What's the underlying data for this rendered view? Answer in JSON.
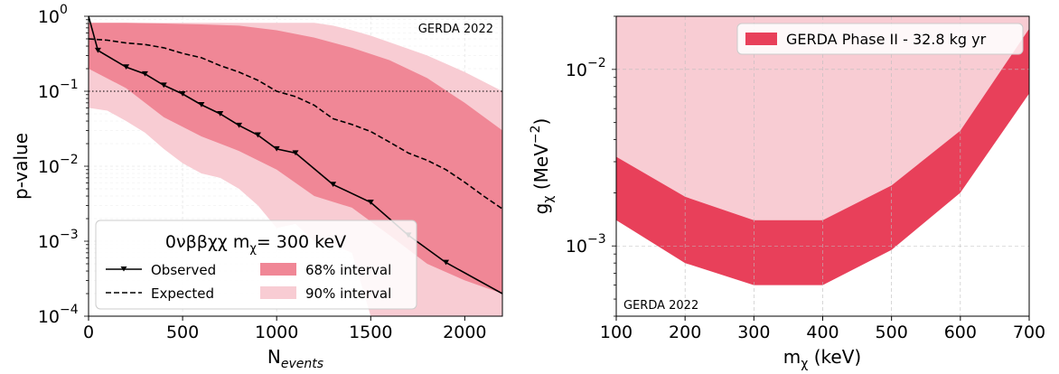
{
  "chart_data": [
    {
      "type": "line",
      "panel": "left",
      "xlabel": "N",
      "xlabel_sub": "events",
      "ylabel": "p-value",
      "xlim": [
        0,
        2200
      ],
      "ylim": [
        0.0001,
        1
      ],
      "yscale": "log",
      "xticks": [
        0,
        500,
        1000,
        1500,
        2000
      ],
      "yticks": [
        {
          "value": 1,
          "base": "10",
          "exp": "0"
        },
        {
          "value": 0.1,
          "base": "10",
          "exp": "−1"
        },
        {
          "value": 0.01,
          "base": "10",
          "exp": "−2"
        },
        {
          "value": 0.001,
          "base": "10",
          "exp": "−3"
        },
        {
          "value": 0.0001,
          "base": "10",
          "exp": "−4"
        }
      ],
      "annotation": "GERDA 2022",
      "reference_line": {
        "y": 0.1,
        "style": "dotted"
      },
      "legend": {
        "title_prefix": "0νββχχ m",
        "title_sub": "χ",
        "title_suffix": "= 300 keV",
        "entries": [
          "Observed",
          "Expected",
          "68% interval",
          "90% interval"
        ],
        "placement": "lower-left"
      },
      "colors": {
        "band68": "#f08796",
        "band90": "#f8ccd3",
        "line": "#000000"
      },
      "series": [
        {
          "name": "Observed",
          "style": "solid-triangle-marker",
          "x": [
            0,
            50,
            200,
            300,
            400,
            500,
            600,
            700,
            800,
            900,
            1000,
            1100,
            1300,
            1500,
            1700,
            1900,
            2200
          ],
          "y": [
            1.0,
            0.35,
            0.21,
            0.17,
            0.12,
            0.092,
            0.066,
            0.05,
            0.035,
            0.026,
            0.017,
            0.015,
            0.0057,
            0.0033,
            0.0012,
            0.00052,
            0.0002
          ]
        },
        {
          "name": "Expected",
          "style": "dashed",
          "x": [
            0,
            100,
            200,
            300,
            400,
            500,
            600,
            700,
            800,
            900,
            1000,
            1100,
            1200,
            1300,
            1400,
            1500,
            1600,
            1700,
            1800,
            1900,
            2000,
            2100,
            2200
          ],
          "y": [
            0.5,
            0.48,
            0.44,
            0.42,
            0.38,
            0.32,
            0.28,
            0.22,
            0.18,
            0.14,
            0.1,
            0.085,
            0.065,
            0.043,
            0.036,
            0.029,
            0.021,
            0.015,
            0.012,
            0.009,
            0.0061,
            0.004,
            0.0027
          ]
        },
        {
          "name": "68% interval",
          "style": "band",
          "x": [
            0,
            200,
            400,
            600,
            800,
            1000,
            1200,
            1400,
            1600,
            1800,
            2000,
            2200
          ],
          "lower": [
            0.2,
            0.11,
            0.045,
            0.025,
            0.016,
            0.009,
            0.004,
            0.0028,
            0.0012,
            0.0005,
            0.0003,
            0.0002
          ],
          "upper": [
            0.82,
            0.82,
            0.8,
            0.78,
            0.75,
            0.65,
            0.52,
            0.38,
            0.26,
            0.15,
            0.07,
            0.03
          ]
        },
        {
          "name": "90% interval",
          "style": "band",
          "x": [
            0,
            100,
            200,
            300,
            400,
            500,
            600,
            700,
            800,
            900,
            1000,
            1100,
            1200,
            1300,
            1400,
            1500,
            1600,
            1800,
            2000,
            2200
          ],
          "lower": [
            0.06,
            0.055,
            0.04,
            0.028,
            0.017,
            0.011,
            0.008,
            0.007,
            0.005,
            0.003,
            0.0015,
            0.0017,
            0.001,
            0.0009,
            0.0007,
            0.0001,
            0.0001,
            0.0001,
            0.0001,
            0.0001
          ],
          "upper": [
            0.82,
            0.82,
            0.82,
            0.82,
            0.82,
            0.82,
            0.82,
            0.82,
            0.82,
            0.82,
            0.82,
            0.82,
            0.82,
            0.75,
            0.65,
            0.55,
            0.45,
            0.3,
            0.18,
            0.1
          ]
        }
      ]
    },
    {
      "type": "area",
      "panel": "right",
      "xlabel_prefix": "m",
      "xlabel_sub": "χ",
      "xlabel_suffix": " (keV)",
      "ylabel_prefix": "g",
      "ylabel_sub": "χ",
      "ylabel_suffix": " (MeV",
      "ylabel_sup": "−2",
      "ylabel_close": ")",
      "xlim": [
        100,
        700
      ],
      "ylim": [
        0.0004,
        0.02
      ],
      "yscale": "log",
      "xticks": [
        100,
        200,
        300,
        400,
        500,
        600,
        700
      ],
      "yticks": [
        {
          "value": 0.01,
          "base": "10",
          "exp": "−2"
        },
        {
          "value": 0.001,
          "base": "10",
          "exp": "−3"
        }
      ],
      "grid": true,
      "annotation": "GERDA 2022",
      "legend": {
        "entries": [
          "GERDA Phase II - 32.8 kg yr"
        ],
        "placement": "top-right"
      },
      "colors": {
        "band": "#e8405a",
        "excluded": "#f8ccd3"
      },
      "series": [
        {
          "name": "GERDA Phase II - 32.8 kg yr",
          "x": [
            100,
            200,
            300,
            400,
            500,
            600,
            700
          ],
          "lower": [
            0.0014,
            0.0008,
            0.0006,
            0.0006,
            0.00095,
            0.002,
            0.0073
          ],
          "upper": [
            0.0032,
            0.0019,
            0.0014,
            0.0014,
            0.0022,
            0.0045,
            0.017
          ]
        }
      ]
    }
  ]
}
